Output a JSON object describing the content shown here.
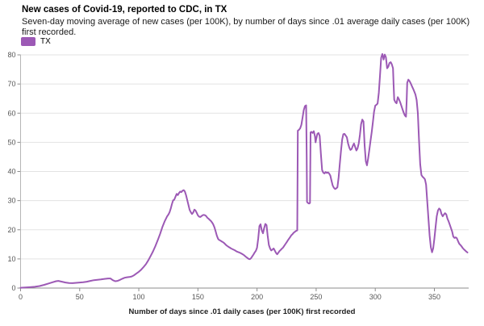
{
  "header": {
    "title": "New cases of Covid-19, reported to CDC, in TX",
    "subtitle": "Seven-day moving average of new cases (per 100K), by number of days since .01 average daily cases (per 100K) first recorded."
  },
  "legend": {
    "label": "TX",
    "swatch_color": "#9c59b5"
  },
  "colors": {
    "line": "#9c59b5",
    "grid": "#e3e3e3",
    "axis": "#8c8c8c",
    "tick_text": "#565656"
  },
  "chart_data": {
    "type": "line",
    "title": "New cases of Covid-19, reported to CDC, in TX",
    "subtitle": "Seven-day moving average of new cases (per 100K), by number of days since .01 average daily cases (per 100K) first recorded.",
    "xlabel": "Number of days since .01 daily cases (per 100K) first recorded",
    "ylabel": "",
    "xlim": [
      0,
      379
    ],
    "ylim": [
      0,
      80
    ],
    "x_ticks": [
      0,
      50,
      100,
      150,
      200,
      250,
      300,
      350
    ],
    "y_ticks": [
      0,
      10,
      20,
      30,
      40,
      50,
      60,
      70,
      80
    ],
    "grid": "horizontal",
    "legend_position": "top-left",
    "line_color": "#9c59b5",
    "series": [
      {
        "name": "TX",
        "points": [
          [
            0,
            0.1
          ],
          [
            4,
            0.2
          ],
          [
            8,
            0.3
          ],
          [
            12,
            0.45
          ],
          [
            16,
            0.7
          ],
          [
            20,
            1.1
          ],
          [
            24,
            1.6
          ],
          [
            27,
            2.0
          ],
          [
            30,
            2.35
          ],
          [
            32,
            2.45
          ],
          [
            35,
            2.2
          ],
          [
            38,
            1.9
          ],
          [
            41,
            1.75
          ],
          [
            44,
            1.7
          ],
          [
            47,
            1.8
          ],
          [
            50,
            1.9
          ],
          [
            53,
            2.0
          ],
          [
            56,
            2.2
          ],
          [
            59,
            2.45
          ],
          [
            62,
            2.7
          ],
          [
            65,
            2.85
          ],
          [
            68,
            3.0
          ],
          [
            71,
            3.15
          ],
          [
            74,
            3.3
          ],
          [
            76,
            3.3
          ],
          [
            78,
            2.7
          ],
          [
            80,
            2.35
          ],
          [
            82,
            2.45
          ],
          [
            84,
            2.8
          ],
          [
            86,
            3.2
          ],
          [
            88,
            3.55
          ],
          [
            90,
            3.7
          ],
          [
            92,
            3.8
          ],
          [
            94,
            4.0
          ],
          [
            96,
            4.4
          ],
          [
            98,
            5.0
          ],
          [
            100,
            5.6
          ],
          [
            102,
            6.3
          ],
          [
            104,
            7.2
          ],
          [
            106,
            8.2
          ],
          [
            108,
            9.5
          ],
          [
            110,
            11.0
          ],
          [
            112,
            12.6
          ],
          [
            114,
            14.4
          ],
          [
            116,
            16.4
          ],
          [
            118,
            18.6
          ],
          [
            120,
            21.0
          ],
          [
            122,
            23.0
          ],
          [
            124,
            24.6
          ],
          [
            125,
            25.2
          ],
          [
            126,
            26.0
          ],
          [
            127,
            27.2
          ],
          [
            128,
            28.8
          ],
          [
            129,
            30.1
          ],
          [
            130,
            30.3
          ],
          [
            131,
            31.3
          ],
          [
            132,
            32.3
          ],
          [
            133,
            31.9
          ],
          [
            134,
            32.6
          ],
          [
            135,
            33.1
          ],
          [
            136,
            32.9
          ],
          [
            137,
            33.4
          ],
          [
            138,
            33.6
          ],
          [
            139,
            33.1
          ],
          [
            140,
            31.8
          ],
          [
            141,
            30.1
          ],
          [
            142,
            28.5
          ],
          [
            143,
            26.8
          ],
          [
            144,
            26.0
          ],
          [
            145,
            25.4
          ],
          [
            146,
            25.9
          ],
          [
            147,
            26.9
          ],
          [
            148,
            26.6
          ],
          [
            149,
            25.8
          ],
          [
            150,
            24.9
          ],
          [
            151,
            24.5
          ],
          [
            152,
            24.4
          ],
          [
            153,
            24.7
          ],
          [
            154,
            25.0
          ],
          [
            155,
            25.1
          ],
          [
            156,
            25.0
          ],
          [
            157,
            24.7
          ],
          [
            158,
            24.1
          ],
          [
            159,
            23.8
          ],
          [
            160,
            23.4
          ],
          [
            161,
            23.0
          ],
          [
            162,
            22.5
          ],
          [
            163,
            21.8
          ],
          [
            164,
            20.8
          ],
          [
            165,
            19.5
          ],
          [
            166,
            18.0
          ],
          [
            167,
            16.9
          ],
          [
            168,
            16.5
          ],
          [
            169,
            16.3
          ],
          [
            170,
            16.0
          ],
          [
            171,
            15.8
          ],
          [
            172,
            15.5
          ],
          [
            173,
            15.1
          ],
          [
            174,
            14.7
          ],
          [
            175,
            14.4
          ],
          [
            176,
            14.1
          ],
          [
            177,
            13.9
          ],
          [
            178,
            13.6
          ],
          [
            179,
            13.4
          ],
          [
            181,
            13.0
          ],
          [
            183,
            12.5
          ],
          [
            185,
            12.2
          ],
          [
            187,
            11.8
          ],
          [
            189,
            11.3
          ],
          [
            191,
            10.6
          ],
          [
            193,
            10.0
          ],
          [
            194,
            9.9
          ],
          [
            195,
            10.3
          ],
          [
            196,
            10.9
          ],
          [
            197,
            11.5
          ],
          [
            198,
            12.2
          ],
          [
            199,
            12.8
          ],
          [
            200,
            13.8
          ],
          [
            201,
            17.0
          ],
          [
            202,
            21.3
          ],
          [
            203,
            21.9
          ],
          [
            204,
            19.8
          ],
          [
            205,
            18.8
          ],
          [
            206,
            20.5
          ],
          [
            207,
            22.0
          ],
          [
            208,
            21.6
          ],
          [
            209,
            18.0
          ],
          [
            210,
            14.8
          ],
          [
            211,
            13.6
          ],
          [
            212,
            12.9
          ],
          [
            213,
            13.2
          ],
          [
            214,
            13.6
          ],
          [
            215,
            12.9
          ],
          [
            216,
            12.1
          ],
          [
            217,
            11.6
          ],
          [
            218,
            12.1
          ],
          [
            219,
            12.7
          ],
          [
            220,
            13.1
          ],
          [
            221,
            13.5
          ],
          [
            222,
            13.9
          ],
          [
            223,
            14.5
          ],
          [
            224,
            15.1
          ],
          [
            225,
            15.7
          ],
          [
            226,
            16.3
          ],
          [
            227,
            16.9
          ],
          [
            228,
            17.5
          ],
          [
            229,
            18.1
          ],
          [
            230,
            18.5
          ],
          [
            231,
            19.0
          ],
          [
            232,
            19.3
          ],
          [
            233,
            19.6
          ],
          [
            234,
            19.8
          ],
          [
            234.5,
            54.0
          ],
          [
            235.5,
            54.3
          ],
          [
            236.5,
            54.8
          ],
          [
            237.5,
            56.0
          ],
          [
            238.5,
            58.5
          ],
          [
            239.5,
            61.0
          ],
          [
            240.5,
            62.4
          ],
          [
            241.5,
            62.7
          ],
          [
            242,
            45.0
          ],
          [
            242.3,
            29.6
          ],
          [
            243,
            29.2
          ],
          [
            244,
            29.0
          ],
          [
            244.8,
            29.2
          ],
          [
            245.3,
            53.4
          ],
          [
            246,
            53.6
          ],
          [
            247,
            53.2
          ],
          [
            248,
            53.8
          ],
          [
            249,
            52.0
          ],
          [
            249.5,
            50.0
          ],
          [
            250,
            51.0
          ],
          [
            251,
            52.9
          ],
          [
            252,
            53.2
          ],
          [
            253,
            52.2
          ],
          [
            254,
            46.0
          ],
          [
            255,
            40.5
          ],
          [
            256,
            39.6
          ],
          [
            257,
            39.3
          ],
          [
            258,
            39.8
          ],
          [
            259,
            39.5
          ],
          [
            260,
            39.7
          ],
          [
            261,
            39.3
          ],
          [
            262,
            38.6
          ],
          [
            263,
            36.8
          ],
          [
            264,
            35.2
          ],
          [
            265,
            34.4
          ],
          [
            266,
            34.0
          ],
          [
            267,
            34.2
          ],
          [
            268,
            34.6
          ],
          [
            269,
            38.0
          ],
          [
            270,
            42.5
          ],
          [
            271,
            47.0
          ],
          [
            272,
            51.0
          ],
          [
            273,
            52.8
          ],
          [
            274,
            52.9
          ],
          [
            275,
            52.3
          ],
          [
            276,
            51.7
          ],
          [
            277,
            49.6
          ],
          [
            278,
            48.2
          ],
          [
            279,
            47.4
          ],
          [
            280,
            47.7
          ],
          [
            281,
            48.8
          ],
          [
            282,
            49.6
          ],
          [
            283,
            48.4
          ],
          [
            284,
            47.2
          ],
          [
            285,
            47.9
          ],
          [
            286,
            49.6
          ],
          [
            287,
            52.6
          ],
          [
            288,
            56.2
          ],
          [
            289,
            57.8
          ],
          [
            290,
            57.1
          ],
          [
            291,
            49.0
          ],
          [
            292,
            43.5
          ],
          [
            293,
            42.1
          ],
          [
            294,
            44.5
          ],
          [
            295,
            47.5
          ],
          [
            296,
            50.5
          ],
          [
            297,
            53.5
          ],
          [
            298,
            57.0
          ],
          [
            299,
            60.5
          ],
          [
            300,
            62.6
          ],
          [
            301,
            62.9
          ],
          [
            302,
            63.3
          ],
          [
            303,
            67.0
          ],
          [
            304,
            73.0
          ],
          [
            305,
            79.0
          ],
          [
            306,
            80.3
          ],
          [
            307,
            78.4
          ],
          [
            308,
            80.1
          ],
          [
            309,
            79.2
          ],
          [
            310,
            75.4
          ],
          [
            311,
            75.9
          ],
          [
            312,
            77.2
          ],
          [
            313,
            77.5
          ],
          [
            314,
            76.8
          ],
          [
            315,
            75.4
          ],
          [
            315.5,
            70.0
          ],
          [
            316,
            64.6
          ],
          [
            317,
            63.8
          ],
          [
            318,
            63.4
          ],
          [
            319,
            65.5
          ],
          [
            320,
            64.8
          ],
          [
            321,
            63.8
          ],
          [
            322,
            62.6
          ],
          [
            323,
            61.4
          ],
          [
            324,
            60.2
          ],
          [
            325,
            59.2
          ],
          [
            326,
            58.8
          ],
          [
            326.5,
            64.0
          ],
          [
            327,
            70.4
          ],
          [
            328,
            71.5
          ],
          [
            329,
            71.0
          ],
          [
            330,
            70.2
          ],
          [
            331,
            69.3
          ],
          [
            332,
            68.4
          ],
          [
            333,
            67.4
          ],
          [
            334,
            66.4
          ],
          [
            335,
            64.5
          ],
          [
            336,
            60.0
          ],
          [
            337,
            51.0
          ],
          [
            338,
            42.5
          ],
          [
            339,
            38.8
          ],
          [
            340,
            38.2
          ],
          [
            341,
            37.8
          ],
          [
            342,
            37.3
          ],
          [
            343,
            35.5
          ],
          [
            344,
            29.5
          ],
          [
            345,
            23.5
          ],
          [
            346,
            18.0
          ],
          [
            347,
            14.0
          ],
          [
            348,
            12.3
          ],
          [
            349,
            13.6
          ],
          [
            350,
            17.0
          ],
          [
            351,
            21.0
          ],
          [
            352,
            24.6
          ],
          [
            353,
            26.6
          ],
          [
            354,
            27.3
          ],
          [
            355,
            26.9
          ],
          [
            356,
            25.4
          ],
          [
            357,
            24.6
          ],
          [
            358,
            25.2
          ],
          [
            359,
            25.7
          ],
          [
            360,
            25.3
          ],
          [
            361,
            23.9
          ],
          [
            362,
            22.9
          ],
          [
            363,
            21.8
          ],
          [
            364,
            20.6
          ],
          [
            365,
            19.4
          ],
          [
            366,
            17.7
          ],
          [
            367,
            17.2
          ],
          [
            368,
            17.4
          ],
          [
            369,
            17.1
          ],
          [
            370,
            16.1
          ],
          [
            371,
            15.2
          ],
          [
            372,
            14.8
          ],
          [
            373,
            14.3
          ],
          [
            374,
            13.7
          ],
          [
            375,
            13.3
          ],
          [
            376,
            12.9
          ],
          [
            377,
            12.5
          ],
          [
            378,
            12.2
          ]
        ]
      }
    ]
  }
}
